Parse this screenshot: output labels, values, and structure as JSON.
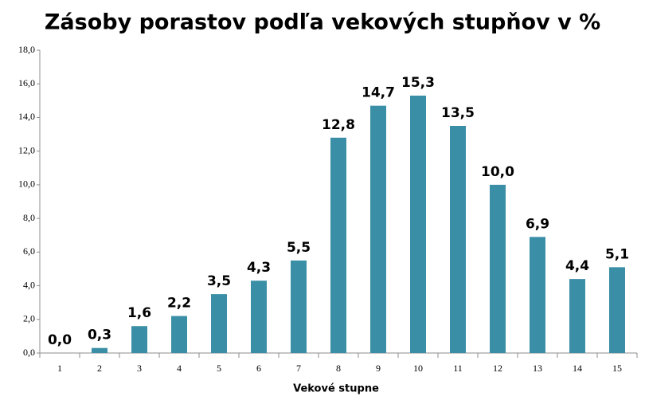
{
  "chart_data": {
    "type": "bar",
    "title": "Zásoby porastov podľa vekových stupňov v %",
    "x_label": "Vekové stupne",
    "categories": [
      "1",
      "2",
      "3",
      "4",
      "5",
      "6",
      "7",
      "8",
      "9",
      "10",
      "11",
      "12",
      "13",
      "14",
      "15"
    ],
    "values": [
      0.0,
      0.3,
      1.6,
      2.2,
      3.5,
      4.3,
      5.5,
      12.8,
      14.7,
      15.3,
      13.5,
      10.0,
      6.9,
      4.4,
      5.1
    ],
    "value_labels": [
      "0,0",
      "0,3",
      "1,6",
      "2,2",
      "3,5",
      "4,3",
      "5,5",
      "12,8",
      "14,7",
      "15,3",
      "13,5",
      "10,0",
      "6,9",
      "4,4",
      "5,1"
    ],
    "color": "#3a8fa6",
    "ylim": [
      0,
      18
    ],
    "yticks": [
      {
        "value": 0,
        "label": "0,0"
      },
      {
        "value": 2,
        "label": "2,0"
      },
      {
        "value": 4,
        "label": "4,0"
      },
      {
        "value": 6,
        "label": "6,0"
      },
      {
        "value": 8,
        "label": "8,0"
      },
      {
        "value": 10,
        "label": "10,0"
      },
      {
        "value": 12,
        "label": "12,0"
      },
      {
        "value": 14,
        "label": "14,0"
      },
      {
        "value": 16,
        "label": "16,0"
      },
      {
        "value": 18,
        "label": "18,0"
      }
    ],
    "grid": false
  }
}
